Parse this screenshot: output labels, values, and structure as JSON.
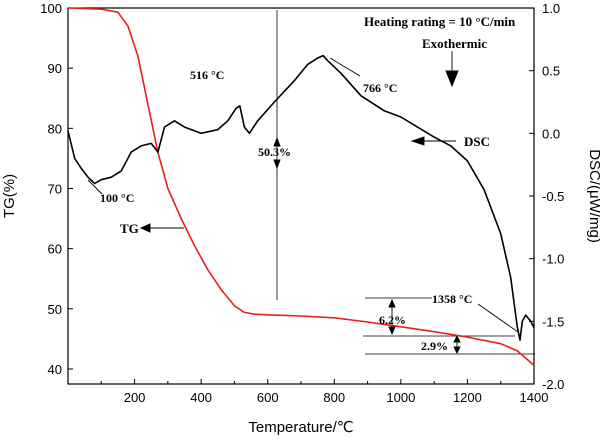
{
  "chart_data": {
    "type": "line",
    "xlabel": "Temperature/℃",
    "ylabel_left": "TG(%)",
    "ylabel_right": "DSC/(μW/mg)",
    "xlim": [
      0,
      1400
    ],
    "ylim_left": [
      37.5,
      100
    ],
    "ylim_right": [
      -2.0,
      1.0
    ],
    "x_ticks": [
      200,
      400,
      600,
      800,
      1000,
      1200,
      1400
    ],
    "y_left_ticks": [
      40,
      50,
      60,
      70,
      80,
      90,
      100
    ],
    "y_right_ticks": [
      "1.0",
      "0.5",
      "0.0",
      "-0.5",
      "-1.0",
      "-1.5",
      "-2.0"
    ],
    "series": [
      {
        "name": "TG",
        "axis": "left",
        "color": "#e8221b",
        "x": [
          0,
          100,
          150,
          180,
          210,
          240,
          270,
          300,
          340,
          380,
          420,
          460,
          500,
          530,
          560,
          600,
          700,
          800,
          900,
          1000,
          1100,
          1200,
          1300,
          1350,
          1400
        ],
        "y": [
          100,
          99.8,
          99.3,
          97,
          92,
          84,
          76,
          70,
          65,
          60.5,
          56.5,
          53.2,
          50.5,
          49.4,
          49.1,
          49,
          48.8,
          48.5,
          47.8,
          47,
          46.2,
          45.3,
          44.2,
          43,
          40.6
        ]
      },
      {
        "name": "DSC",
        "axis": "right",
        "color": "#000000",
        "x": [
          0,
          20,
          40,
          60,
          80,
          100,
          130,
          160,
          190,
          220,
          250,
          270,
          290,
          320,
          350,
          400,
          450,
          480,
          505,
          516,
          530,
          545,
          570,
          620,
          680,
          720,
          750,
          766,
          780,
          820,
          880,
          950,
          1000,
          1050,
          1100,
          1150,
          1200,
          1250,
          1300,
          1330,
          1340,
          1350,
          1358,
          1365,
          1375,
          1390,
          1400
        ],
        "y": [
          0.02,
          -0.2,
          -0.28,
          -0.35,
          -0.4,
          -0.37,
          -0.35,
          -0.3,
          -0.15,
          -0.1,
          -0.08,
          -0.15,
          0.05,
          0.1,
          0.05,
          0.0,
          0.03,
          0.1,
          0.2,
          0.22,
          0.05,
          0.0,
          0.1,
          0.25,
          0.42,
          0.55,
          0.6,
          0.62,
          0.58,
          0.48,
          0.3,
          0.18,
          0.13,
          0.05,
          -0.03,
          -0.1,
          -0.22,
          -0.45,
          -0.8,
          -1.15,
          -1.35,
          -1.55,
          -1.65,
          -1.5,
          -1.45,
          -1.5,
          -1.55
        ]
      }
    ],
    "annotations": {
      "heating": "Heating rating = 10 °C/min",
      "exothermic": "Exothermic",
      "p100": "100 °C",
      "p516": "516 °C",
      "p766": "766 °C",
      "p1358": "1358 °C",
      "loss1": "50.3%",
      "loss2": "6.2%",
      "loss3": "2.9%",
      "tg_label": "TG",
      "dsc_label": "DSC"
    }
  }
}
